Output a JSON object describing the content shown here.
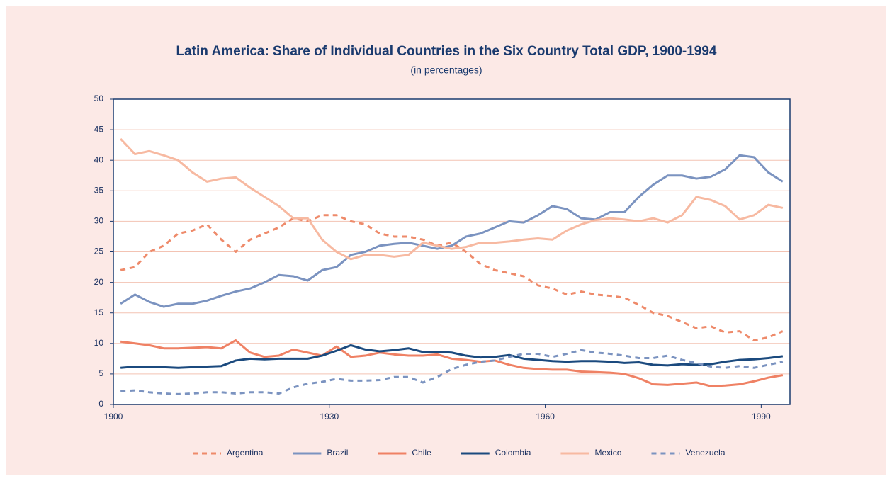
{
  "chart_data": {
    "type": "line",
    "title": "Latin America: Share of Individual Countries in the Six Country Total GDP, 1900-1994",
    "subtitle": "(in percentages)",
    "x": [
      1901,
      1903,
      1905,
      1907,
      1909,
      1911,
      1913,
      1915,
      1917,
      1919,
      1921,
      1923,
      1925,
      1927,
      1929,
      1931,
      1933,
      1935,
      1937,
      1939,
      1941,
      1943,
      1945,
      1947,
      1949,
      1951,
      1953,
      1955,
      1957,
      1959,
      1961,
      1963,
      1965,
      1967,
      1969,
      1971,
      1973,
      1975,
      1977,
      1979,
      1981,
      1983,
      1985,
      1987,
      1989,
      1991,
      1993
    ],
    "series": [
      {
        "name": "Argentina",
        "color": "#ee8a6a",
        "style": "dashed",
        "values": [
          22,
          22.5,
          25,
          26,
          28,
          28.5,
          29.5,
          27,
          25,
          27,
          28,
          29,
          30.5,
          30,
          31,
          31,
          30,
          29.5,
          28,
          27.5,
          27.5,
          27,
          26,
          26.5,
          25,
          23,
          22,
          21.5,
          21,
          19.5,
          19,
          18,
          18.5,
          18,
          17.8,
          17.5,
          16.3,
          15,
          14.5,
          13.5,
          12.5,
          12.8,
          11.8,
          12,
          10.5,
          11,
          12
        ]
      },
      {
        "name": "Brazil",
        "color": "#7b93c0",
        "style": "solid",
        "values": [
          16.5,
          18,
          16.8,
          16,
          16.5,
          16.5,
          17,
          17.8,
          18.5,
          19,
          20,
          21.2,
          21,
          20.3,
          22,
          22.5,
          24.5,
          25,
          26,
          26.3,
          26.5,
          26,
          25.5,
          26,
          27.5,
          28,
          29,
          30,
          29.8,
          31,
          32.5,
          32,
          30.5,
          30.3,
          31.5,
          31.5,
          34,
          36,
          37.5,
          37.5,
          37,
          37.3,
          38.5,
          40.8,
          40.5,
          38,
          36.5
        ]
      },
      {
        "name": "Chile",
        "color": "#ef8164",
        "style": "solid",
        "values": [
          10.3,
          10,
          9.7,
          9.2,
          9.2,
          9.3,
          9.4,
          9.2,
          10.5,
          8.5,
          7.8,
          8,
          9,
          8.5,
          8,
          9.5,
          7.8,
          8,
          8.5,
          8.2,
          8,
          8,
          8.2,
          7.5,
          7.3,
          7,
          7.2,
          6.5,
          6,
          5.8,
          5.7,
          5.7,
          5.4,
          5.3,
          5.2,
          5,
          4.3,
          3.3,
          3.2,
          3.4,
          3.6,
          3,
          3.1,
          3.3,
          3.8,
          4.4,
          4.8
        ]
      },
      {
        "name": "Colombia",
        "color": "#1b4a7e",
        "style": "solid",
        "values": [
          6,
          6.2,
          6.1,
          6.1,
          6,
          6.1,
          6.2,
          6.3,
          7.2,
          7.5,
          7.4,
          7.5,
          7.5,
          7.5,
          8,
          8.8,
          9.7,
          9,
          8.7,
          8.9,
          9.2,
          8.6,
          8.6,
          8.5,
          8,
          7.7,
          7.8,
          8.1,
          7.5,
          7.3,
          7.1,
          7,
          7.1,
          7.1,
          7,
          6.8,
          6.9,
          6.5,
          6.4,
          6.6,
          6.5,
          6.6,
          7,
          7.3,
          7.4,
          7.6,
          7.9
        ]
      },
      {
        "name": "Mexico",
        "color": "#f7b9a1",
        "style": "solid",
        "values": [
          43.5,
          41,
          41.5,
          40.8,
          40,
          38,
          36.5,
          37,
          37.2,
          35.5,
          34,
          32.5,
          30.5,
          30.5,
          27,
          25,
          23.8,
          24.5,
          24.5,
          24.2,
          24.5,
          26.5,
          26,
          25.5,
          25.8,
          26.5,
          26.5,
          26.7,
          27,
          27.2,
          27,
          28.5,
          29.5,
          30.2,
          30.5,
          30.3,
          30,
          30.5,
          29.8,
          31,
          34,
          33.5,
          32.5,
          30.3,
          31,
          32.7,
          32.2
        ]
      },
      {
        "name": "Venezuela",
        "color": "#7b93c0",
        "style": "dashed",
        "values": [
          2.2,
          2.3,
          2,
          1.8,
          1.7,
          1.8,
          2,
          2,
          1.8,
          2,
          2,
          1.8,
          2.8,
          3.4,
          3.7,
          4.2,
          3.9,
          3.9,
          4,
          4.5,
          4.5,
          3.6,
          4.5,
          5.8,
          6.5,
          7,
          7.2,
          7.8,
          8.3,
          8.3,
          7.8,
          8.3,
          8.9,
          8.5,
          8.3,
          8,
          7.6,
          7.6,
          8,
          7.3,
          6.8,
          6.2,
          6,
          6.3,
          6,
          6.5,
          7
        ]
      }
    ],
    "xlim": [
      1900,
      1994
    ],
    "xticks": [
      1900,
      1930,
      1960,
      1990
    ],
    "ylim": [
      0,
      50
    ],
    "yticks": [
      0,
      5,
      10,
      15,
      20,
      25,
      30,
      35,
      40,
      45,
      50
    ],
    "grid": true,
    "legend": "bottom"
  }
}
